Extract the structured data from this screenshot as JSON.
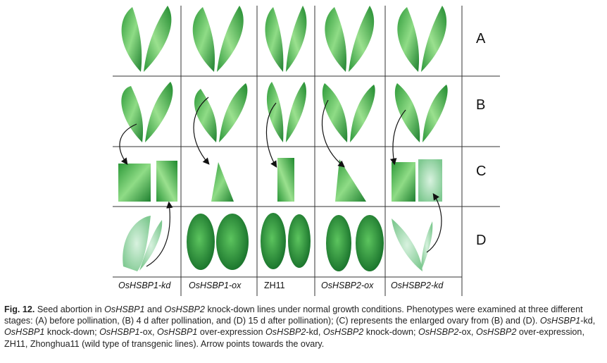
{
  "figure": {
    "row_labels": [
      "A",
      "B",
      "C",
      "D"
    ],
    "column_labels": [
      {
        "text": "OsHSBP1-kd",
        "italic": true
      },
      {
        "text": "OsHSBP1-ox",
        "italic": true
      },
      {
        "text": "ZH11",
        "italic": false
      },
      {
        "text": "OsHSBP2-ox",
        "italic": true
      },
      {
        "text": "OsHSBP2-kd",
        "italic": true
      }
    ],
    "colors": {
      "leaf_dark": "#1f8a2e",
      "leaf_light": "#7fd07a",
      "seed_dark": "#17702a",
      "grid_line": "#333333"
    }
  },
  "caption": {
    "label": "Fig. 12.",
    "p1": " Seed abortion in ",
    "g1": "OsHSBP1",
    "p2": " and ",
    "g2": "OsHSBP2",
    "p3": " knock-down lines under normal growth conditions. Phenotypes were examined at three different stages: (A) before pollination, (B) 4 d after pollination, and (D) 15 d after pollination); (C) represents the enlarged ovary from (B) and (D). ",
    "g3": "OsHSBP1",
    "p4": "-kd, ",
    "g4": "OsHSBP1",
    "p5": " knock-down; ",
    "g5": "OsHSBP1",
    "p6": "-ox, ",
    "g6": "OsHSBP1",
    "p7": " over-expression ",
    "g7": "OsHSBP2",
    "p8": "-kd, ",
    "g8": "OsHSBP2",
    "p9": " knock-down; ",
    "g9": "OsHSBP2",
    "p10": "-ox, ",
    "g10": "OsHSBP2",
    "p11": " over-expression, ZH11, Zhonghua11 (wild type of transgenic lines). Arrow points towards the ovary."
  }
}
